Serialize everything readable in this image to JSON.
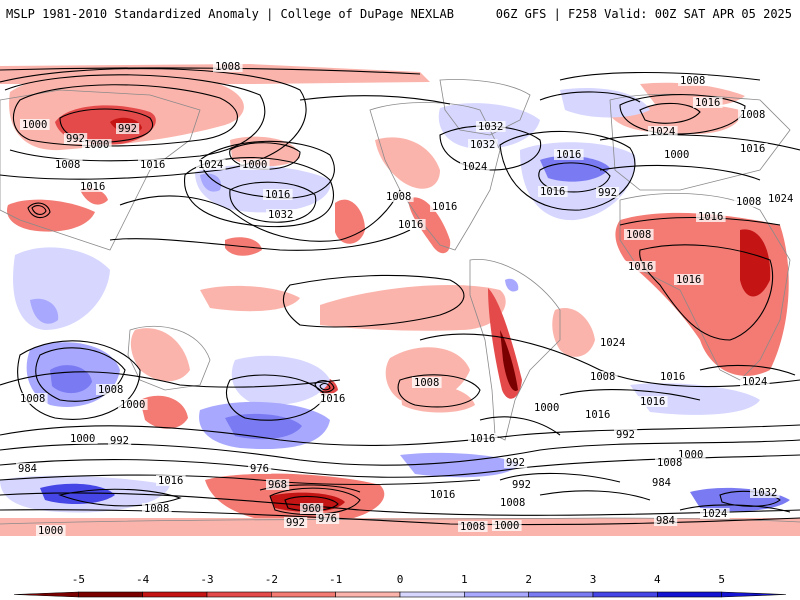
{
  "header": {
    "left": "MSLP 1981-2010 Standardized Anomaly | College of DuPage NEXLAB",
    "right": "06Z GFS | F258 Valid: 00Z SAT APR 05 2025"
  },
  "colors": {
    "neg5": "#7a0000",
    "neg4": "#c41414",
    "neg3": "#e44a4a",
    "neg2": "#f37b74",
    "neg1": "#fbb4ac",
    "zero": "#ffffff",
    "pos1": "#d6d6ff",
    "pos2": "#a8a8ff",
    "pos3": "#7a7af2",
    "pos4": "#4646e6",
    "pos5": "#1414d2",
    "land": "#c8c8c8",
    "contour": "#000000"
  },
  "colorbar": {
    "ticks": [
      "-5",
      "-4",
      "-3",
      "-2",
      "-1",
      "0",
      "1",
      "2",
      "3",
      "4",
      "5"
    ]
  },
  "contour_labels": [
    "1008",
    "1016",
    "1000",
    "992",
    "992",
    "1000",
    "1008",
    "1016",
    "1016",
    "1024",
    "1000",
    "1032",
    "1008",
    "1016",
    "1016",
    "1024",
    "1032",
    "1032",
    "1016",
    "1016",
    "992",
    "1008",
    "1016",
    "1024",
    "1008",
    "1000",
    "1016",
    "1024",
    "1008",
    "1016",
    "1008",
    "1016",
    "1016",
    "1024",
    "1016",
    "1008",
    "1016",
    "1024",
    "1008",
    "1000",
    "992",
    "1008",
    "1000",
    "984",
    "976",
    "968",
    "960",
    "976",
    "992",
    "1008",
    "1016",
    "1016",
    "992",
    "992",
    "1008",
    "1000",
    "984",
    "1024",
    "1032",
    "1000",
    "1008",
    "1016",
    "1000",
    "992",
    "1016",
    "984",
    "1000",
    "1016",
    "1008",
    "1008"
  ]
}
